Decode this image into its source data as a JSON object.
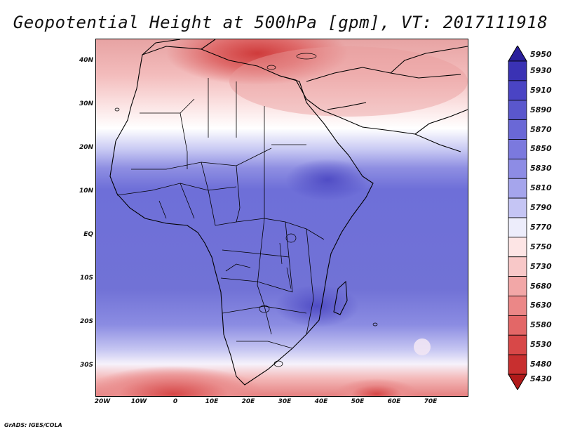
{
  "title": "Geopotential Height at 500hPa [gpm], VT: 2017111918",
  "footer": "GrADS: IGES/COLA",
  "lat_labels": [
    "40N",
    "30N",
    "20N",
    "10N",
    "EQ",
    "10S",
    "20S",
    "30S"
  ],
  "lon_labels": [
    "20W",
    "10W",
    "0",
    "10E",
    "20E",
    "30E",
    "40E",
    "50E",
    "60E",
    "70E"
  ],
  "colorbar": {
    "levels": [
      "5950",
      "5930",
      "5910",
      "5890",
      "5870",
      "5850",
      "5830",
      "5810",
      "5790",
      "5770",
      "5750",
      "5730",
      "5680",
      "5630",
      "5580",
      "5530",
      "5480",
      "5430"
    ],
    "colors": [
      "#2a1f9c",
      "#3a32b4",
      "#4a44c4",
      "#5a57cd",
      "#6a68d6",
      "#7b79de",
      "#8d8ce5",
      "#a5a5ec",
      "#c5c5f4",
      "#ededfb",
      "#fde5e5",
      "#f8c8c8",
      "#f2a7a7",
      "#eb8787",
      "#e36767",
      "#d84848",
      "#c82f2f",
      "#b01a1a"
    ]
  }
}
